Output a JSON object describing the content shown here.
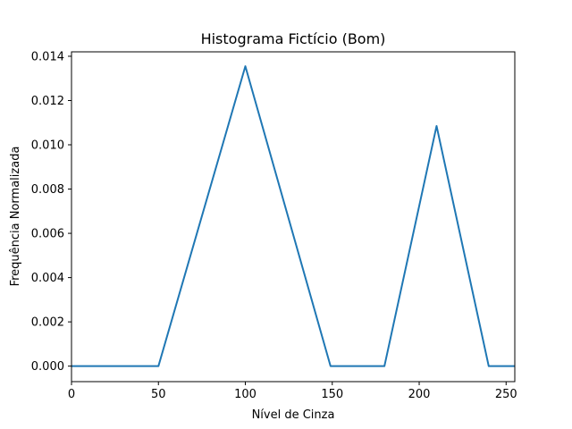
{
  "chart_data": {
    "type": "line",
    "title": "Histograma Fictício (Bom)",
    "xlabel": "Nível de Cinza",
    "ylabel": "Frequência Normalizada",
    "xlim": [
      0,
      255
    ],
    "ylim": [
      -0.0007,
      0.0142
    ],
    "xticks": [
      0,
      50,
      100,
      150,
      200,
      250
    ],
    "xtick_labels": [
      "0",
      "50",
      "100",
      "150",
      "200",
      "250"
    ],
    "yticks": [
      0.0,
      0.002,
      0.004,
      0.006,
      0.008,
      0.01,
      0.012,
      0.014
    ],
    "ytick_labels": [
      "0.000",
      "0.002",
      "0.004",
      "0.006",
      "0.008",
      "0.010",
      "0.012",
      "0.014"
    ],
    "grid": false,
    "series": [
      {
        "color": "#1f77b4",
        "x": [
          0,
          50,
          100,
          149,
          180,
          210,
          240,
          255
        ],
        "y": [
          0.0,
          0.0,
          0.01355,
          0.0,
          0.0,
          0.01085,
          0.0,
          0.0
        ]
      }
    ]
  }
}
